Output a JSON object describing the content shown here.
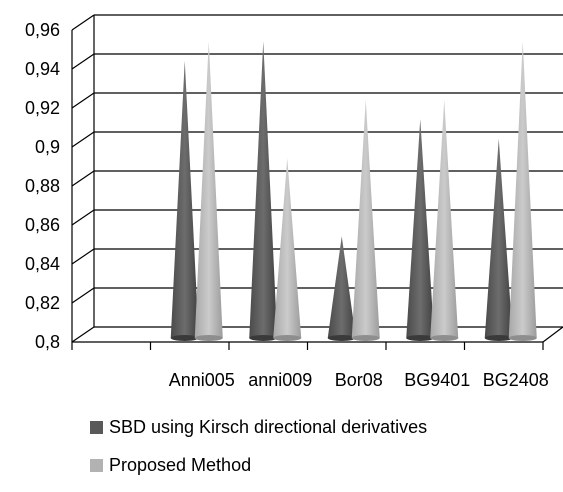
{
  "chart_data": {
    "type": "bar",
    "style": "3d-cone",
    "categories": [
      "",
      "Anni005",
      "anni009",
      "Bor08",
      "BG9401",
      "BG2408"
    ],
    "series": [
      {
        "name": "SBD using Kirsch directional derivatives",
        "color": "#595959",
        "values": [
          null,
          0.94,
          0.95,
          0.85,
          0.91,
          0.9
        ]
      },
      {
        "name": "Proposed Method",
        "color": "#b2b2b2",
        "values": [
          null,
          0.95,
          0.89,
          0.92,
          0.92,
          0.95
        ]
      }
    ],
    "ylim": [
      0.8,
      0.96
    ],
    "yticks": [
      "0,8",
      "0,82",
      "0,84",
      "0,86",
      "0,88",
      "0,9",
      "0,92",
      "0,94",
      "0,96"
    ],
    "grid": true,
    "legend": "bottom",
    "title": "",
    "xlabel": "",
    "ylabel": ""
  }
}
